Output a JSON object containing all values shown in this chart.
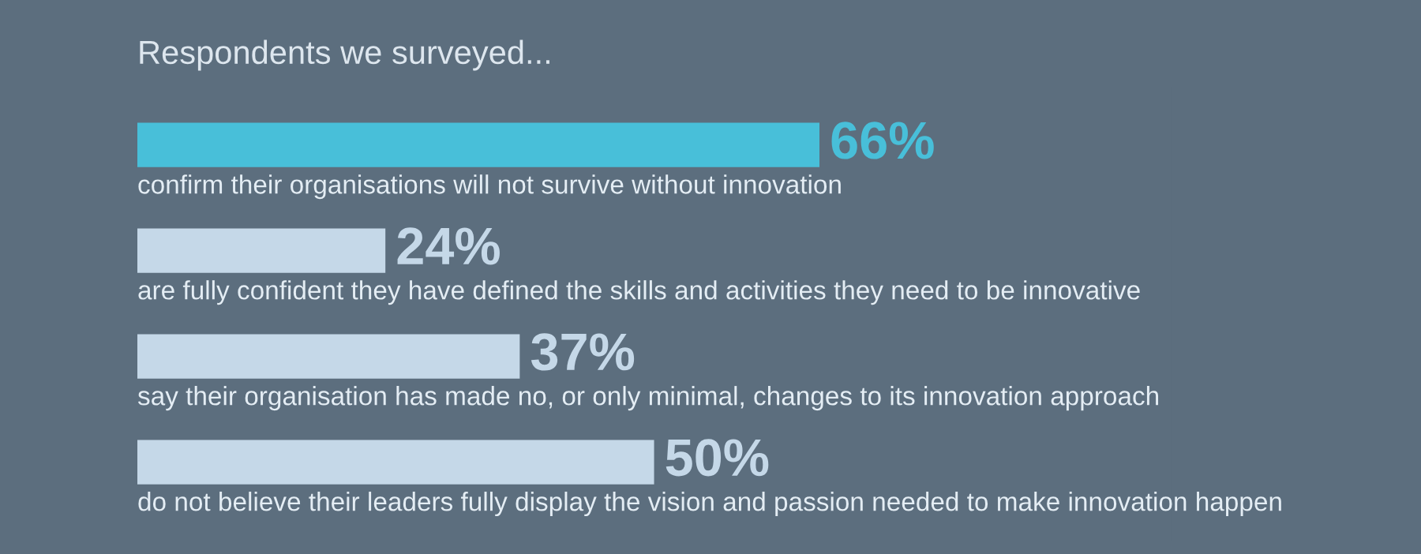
{
  "chart_data": {
    "type": "bar",
    "orientation": "horizontal",
    "title": "Respondents we surveyed...",
    "categories": [
      "confirm their organisations will not survive without innovation",
      "are fully confident they have defined the skills and activities they need to be innovative",
      "say their organisation has made no, or only minimal, changes to its innovation approach",
      "do not believe their leaders fully display the vision and passion needed to make innovation happen"
    ],
    "values": [
      66,
      24,
      37,
      50
    ],
    "colors": [
      "#48bfd9",
      "#c5d8e8",
      "#c5d8e8",
      "#c5d8e8"
    ],
    "value_labels": [
      "66%",
      "24%",
      "37%",
      "50%"
    ]
  }
}
